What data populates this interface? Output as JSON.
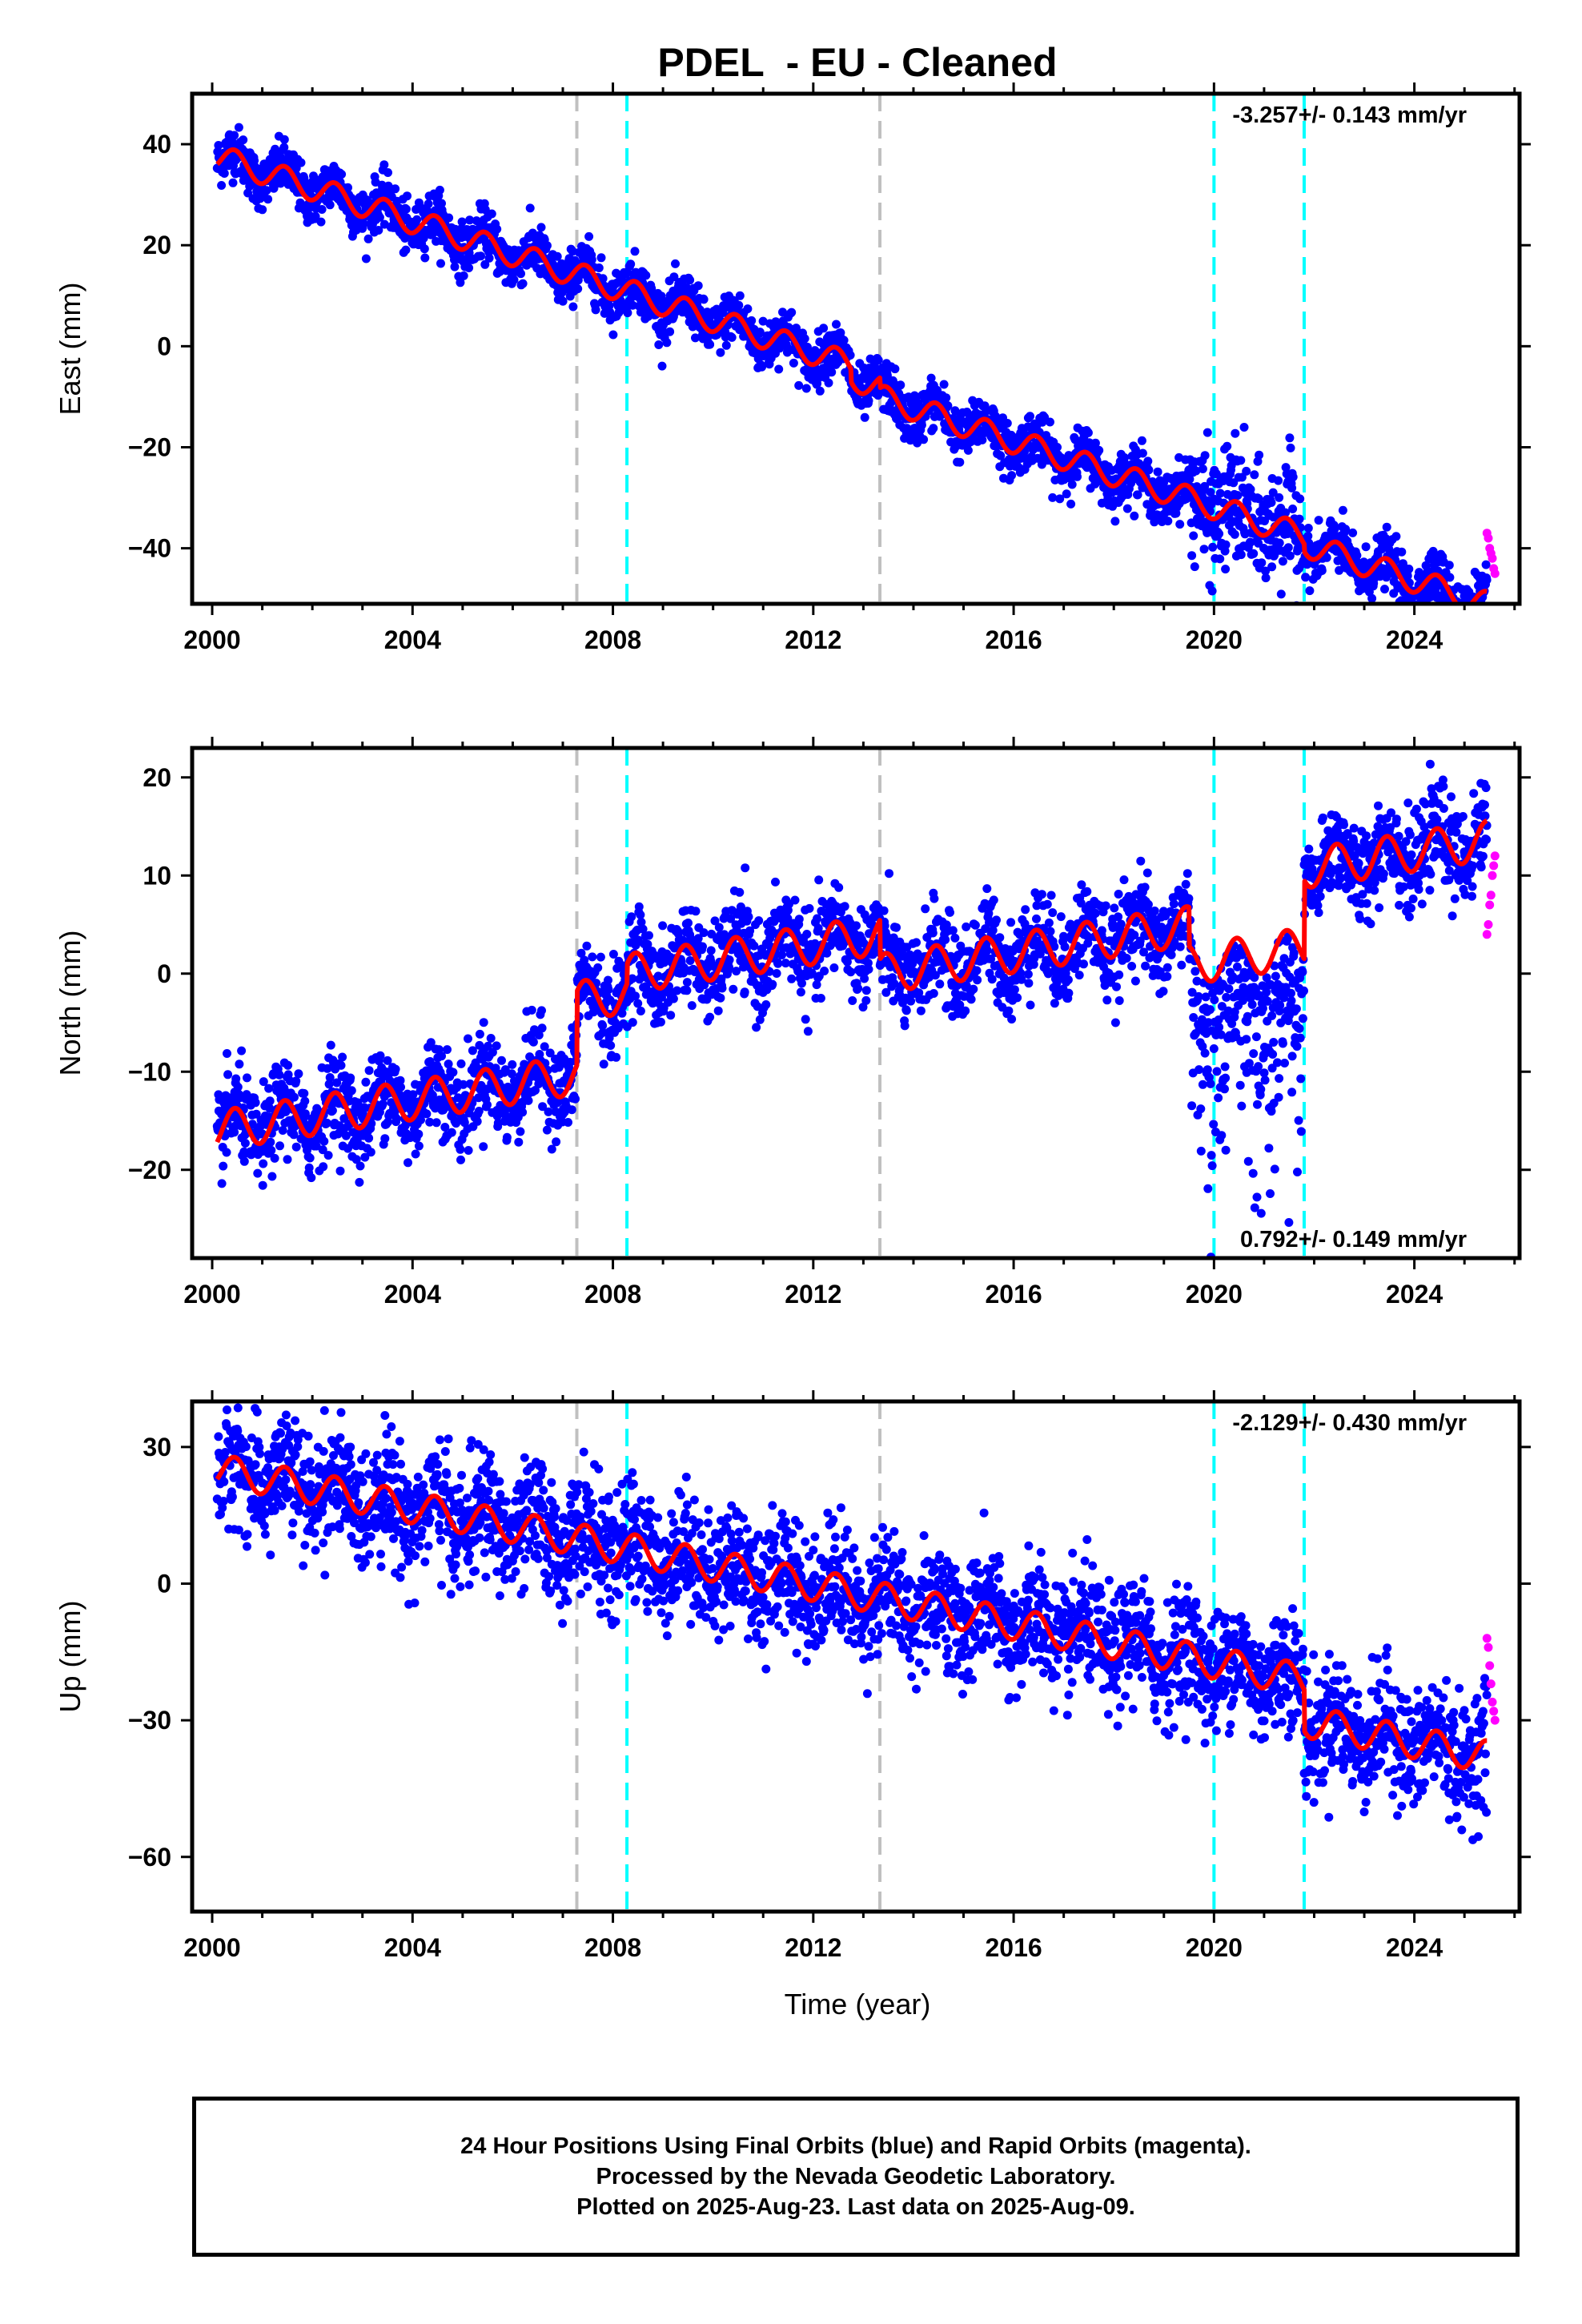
{
  "title": "PDEL  - EU - Cleaned",
  "x_axis_label": "Time (year)",
  "footer": {
    "line1": "24 Hour Positions Using Final Orbits (blue) and Rapid Orbits (magenta).",
    "line2": "Processed by the Nevada Geodetic Laboratory.",
    "line3": "Plotted on 2025-Aug-23. Last data on 2025-Aug-09."
  },
  "colors": {
    "final_orbits": "#0000ff",
    "rapid_orbits": "#ff00ff",
    "model": "#ff0000",
    "equipment_change": "#00ffff",
    "earthquake": "#c0c0c0"
  },
  "chart_data": [
    {
      "type": "scatter",
      "panel": "east",
      "ylabel": "East (mm)",
      "rate_label": "-3.257+/- 0.143 mm/yr",
      "xlim": [
        1999.6,
        2026.1
      ],
      "ylim": [
        -51,
        50
      ],
      "xticks": [
        2000,
        2004,
        2008,
        2012,
        2016,
        2020,
        2024
      ],
      "yticks": [
        -40,
        -20,
        0,
        20,
        40
      ],
      "data_start": 2000.1,
      "data_end": 2025.45,
      "rapid_start": 2025.45,
      "rapid_end": 2025.61,
      "gray_lines": [
        2007.28,
        2013.33
      ],
      "cyan_lines": [
        2008.28,
        2020.0,
        2021.8
      ],
      "model": {
        "rate": -3.257,
        "anchor_year": 2000.1,
        "anchor_value": 37.5,
        "annual_amplitude": 2.5,
        "offsets": [
          {
            "year": 2012.75,
            "value": -2.5
          },
          {
            "year": 2013.33,
            "value": -2.0
          },
          {
            "year": 2021.8,
            "value": -1.5
          }
        ]
      },
      "scatter_sigma": 2.5,
      "noisy_periods": [
        {
          "start": 2019.5,
          "end": 2021.8,
          "sigma": 6
        }
      ],
      "rapid_values": [
        -37,
        -38,
        -40,
        -41,
        -42,
        -44,
        -45
      ]
    },
    {
      "type": "scatter",
      "panel": "north",
      "ylabel": "North (mm)",
      "rate_label": "0.792+/- 0.149 mm/yr",
      "xlim": [
        1999.6,
        2026.1
      ],
      "ylim": [
        -29,
        23
      ],
      "xticks": [
        2000,
        2004,
        2008,
        2012,
        2016,
        2020,
        2024
      ],
      "yticks": [
        -20,
        -10,
        0,
        10,
        20
      ],
      "data_start": 2000.1,
      "data_end": 2025.45,
      "rapid_start": 2025.45,
      "rapid_end": 2025.61,
      "gray_lines": [
        2007.28,
        2013.33
      ],
      "cyan_lines": [
        2008.28,
        2020.0,
        2021.8
      ],
      "model": {
        "rate": 0.792,
        "anchor_year": 2000.1,
        "anchor_value": -16.0,
        "annual_amplitude": 2.0,
        "offsets": [
          {
            "year": 2007.28,
            "value": 7.5
          },
          {
            "year": 2008.28,
            "value": 2.0
          },
          {
            "year": 2013.33,
            "value": -4.0
          },
          {
            "year": 2019.5,
            "value": -4.0
          },
          {
            "year": 2021.8,
            "value": 8.0
          }
        ]
      },
      "scatter_sigma": 2.3,
      "noisy_periods": [
        {
          "start": 2019.55,
          "end": 2021.8,
          "sigma": 9
        }
      ],
      "rapid_values": [
        4,
        5,
        7,
        8,
        10,
        11,
        12
      ]
    },
    {
      "type": "scatter",
      "panel": "up",
      "ylabel": "Up (mm)",
      "rate_label": "-2.129+/- 0.430 mm/yr",
      "xlim": [
        1999.6,
        2026.1
      ],
      "ylim": [
        -72,
        40
      ],
      "xticks": [
        2000,
        2004,
        2008,
        2012,
        2016,
        2020,
        2024
      ],
      "yticks": [
        -60,
        -30,
        0,
        30
      ],
      "data_start": 2000.1,
      "data_end": 2025.45,
      "rapid_start": 2025.45,
      "rapid_end": 2025.61,
      "gray_lines": [
        2007.28,
        2013.33
      ],
      "cyan_lines": [
        2008.28,
        2020.0,
        2021.8
      ],
      "model": {
        "rate": -2.129,
        "anchor_year": 2000.1,
        "anchor_value": 25.0,
        "annual_amplitude": 3.5,
        "offsets": [
          {
            "year": 2021.8,
            "value": -9.0
          }
        ]
      },
      "scatter_sigma": 6.5,
      "noisy_periods": [],
      "rapid_values": [
        -12,
        -14,
        -18,
        -22,
        -26,
        -28,
        -30
      ]
    }
  ]
}
